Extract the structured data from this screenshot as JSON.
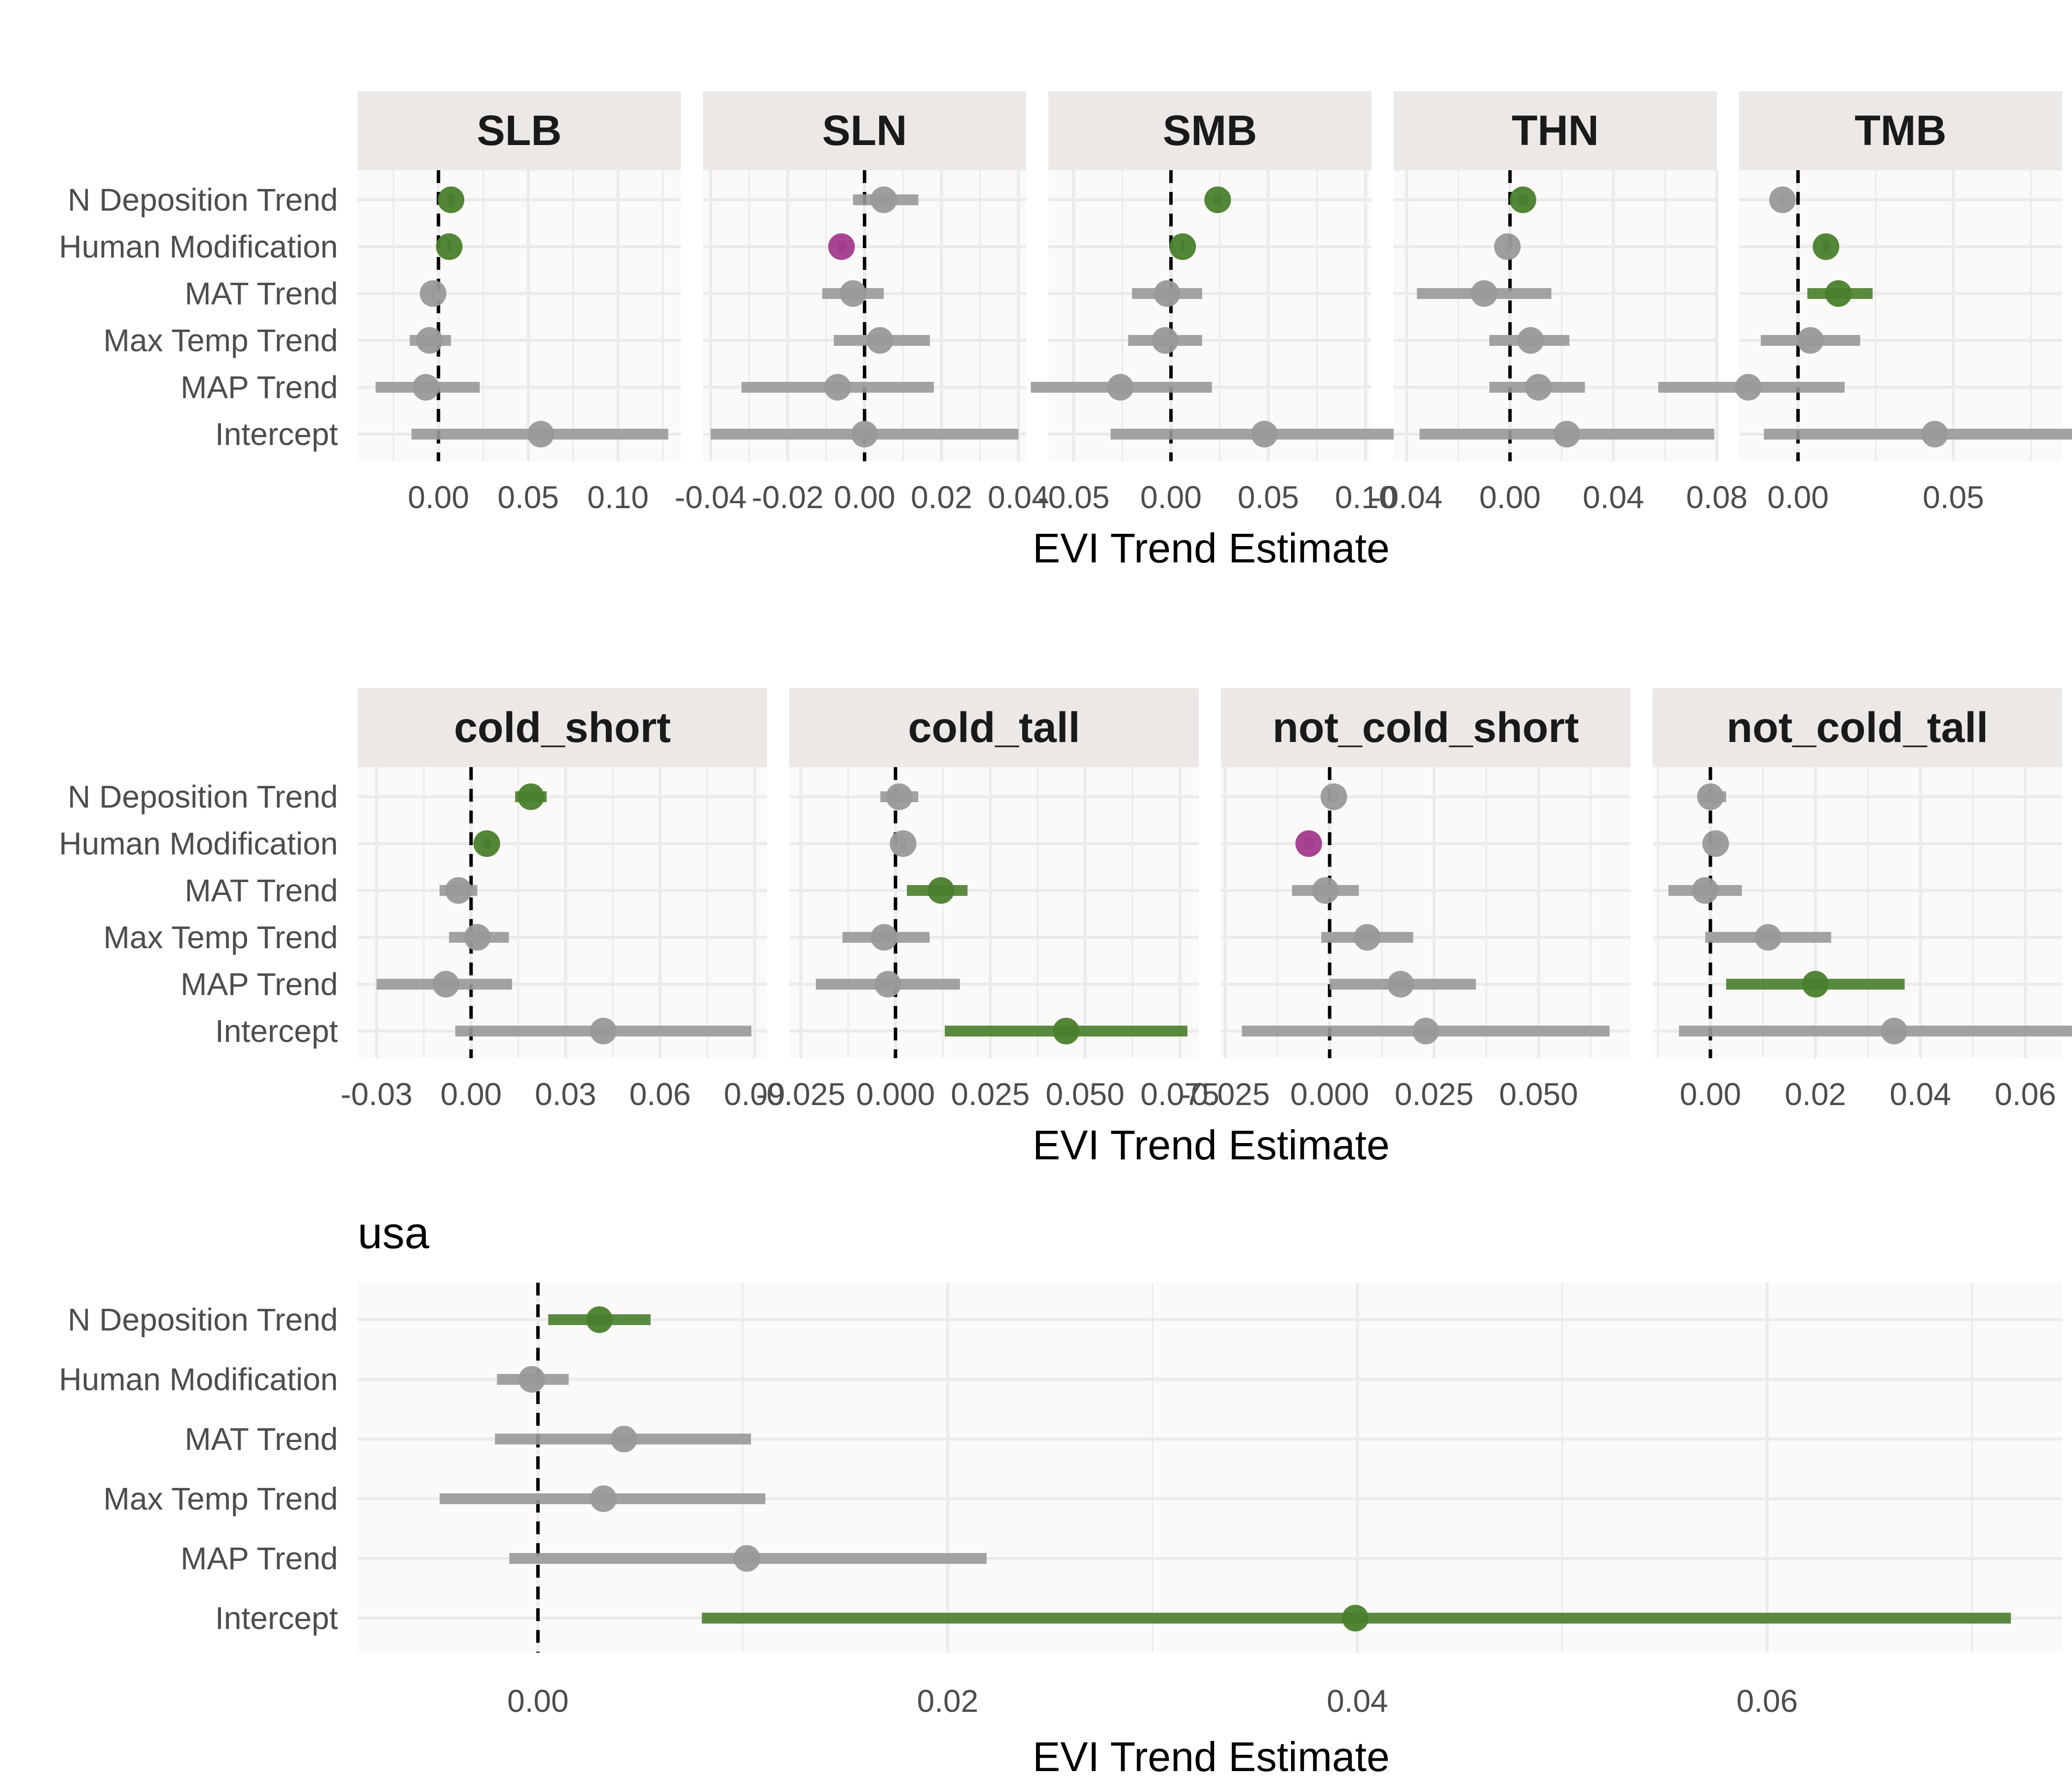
{
  "colors": {
    "significant_positive": "#4a7f2c",
    "significant_negative": "#a33b8c",
    "not_significant": "#999999",
    "strip_background": "#ebe8e6",
    "panel_background": "#fcfaf9",
    "grid": "#ebebeb",
    "zero_line": "#000000"
  },
  "chart_data": [
    {
      "type": "scatter",
      "subtype": "coefficient-dot-plot-with-interval",
      "facets": [
        "SLB",
        "SLN",
        "SMB",
        "THN",
        "TMB"
      ],
      "categories": [
        "N Deposition Trend",
        "Human Modification",
        "MAT Trend",
        "Max Temp Trend",
        "MAP Trend",
        "Intercept"
      ],
      "xlabel": "EVI Trend Estimate",
      "reference_line": 0,
      "grid": true,
      "panels": [
        {
          "name": "SLB",
          "xlim": [
            -0.045,
            0.135
          ],
          "xticks": [
            0,
            0.05,
            0.1
          ],
          "xtick_labels": [
            "0.00",
            "0.05",
            "0.10"
          ],
          "estimates": [
            {
              "term": "N Deposition Trend",
              "estimate": 0.007,
              "low": 0.005,
              "high": 0.009,
              "status": "positive"
            },
            {
              "term": "Human Modification",
              "estimate": 0.006,
              "low": 0.005,
              "high": 0.007,
              "status": "positive"
            },
            {
              "term": "MAT Trend",
              "estimate": -0.003,
              "low": -0.004,
              "high": -0.002,
              "status": "ns"
            },
            {
              "term": "Max Temp Trend",
              "estimate": -0.005,
              "low": -0.016,
              "high": 0.007,
              "status": "ns"
            },
            {
              "term": "MAP Trend",
              "estimate": -0.007,
              "low": -0.035,
              "high": 0.023,
              "status": "ns"
            },
            {
              "term": "Intercept",
              "estimate": 0.057,
              "low": -0.015,
              "high": 0.128,
              "status": "ns"
            }
          ]
        },
        {
          "name": "SLN",
          "xlim": [
            -0.042,
            0.042
          ],
          "xticks": [
            -0.04,
            -0.02,
            0,
            0.02,
            0.04
          ],
          "xtick_labels": [
            "-0.04",
            "-0.02",
            "0.00",
            "0.02",
            "0.04"
          ],
          "estimates": [
            {
              "term": "N Deposition Trend",
              "estimate": 0.005,
              "low": -0.003,
              "high": 0.014,
              "status": "ns"
            },
            {
              "term": "Human Modification",
              "estimate": -0.006,
              "low": -0.007,
              "high": -0.005,
              "status": "negative"
            },
            {
              "term": "MAT Trend",
              "estimate": -0.003,
              "low": -0.011,
              "high": 0.005,
              "status": "ns"
            },
            {
              "term": "Max Temp Trend",
              "estimate": 0.004,
              "low": -0.008,
              "high": 0.017,
              "status": "ns"
            },
            {
              "term": "MAP Trend",
              "estimate": -0.007,
              "low": -0.032,
              "high": 0.018,
              "status": "ns"
            },
            {
              "term": "Intercept",
              "estimate": 0.0,
              "low": -0.04,
              "high": 0.04,
              "status": "ns"
            }
          ]
        },
        {
          "name": "SMB",
          "xlim": [
            -0.063,
            0.103
          ],
          "xticks": [
            -0.05,
            0,
            0.05,
            0.1
          ],
          "xtick_labels": [
            "-0.05",
            "0.00",
            "0.05",
            "0.10"
          ],
          "estimates": [
            {
              "term": "N Deposition Trend",
              "estimate": 0.024,
              "low": 0.022,
              "high": 0.026,
              "status": "positive"
            },
            {
              "term": "Human Modification",
              "estimate": 0.006,
              "low": 0.005,
              "high": 0.007,
              "status": "positive"
            },
            {
              "term": "MAT Trend",
              "estimate": -0.002,
              "low": -0.02,
              "high": 0.016,
              "status": "ns"
            },
            {
              "term": "Max Temp Trend",
              "estimate": -0.003,
              "low": -0.022,
              "high": 0.016,
              "status": "ns"
            },
            {
              "term": "MAP Trend",
              "estimate": -0.026,
              "low": -0.072,
              "high": 0.021,
              "status": "ns"
            },
            {
              "term": "Intercept",
              "estimate": 0.048,
              "low": -0.031,
              "high": 0.127,
              "status": "ns"
            }
          ]
        },
        {
          "name": "THN",
          "xlim": [
            -0.045,
            0.08
          ],
          "xticks": [
            -0.04,
            0,
            0.04,
            0.08
          ],
          "xtick_labels": [
            "-0.04",
            "0.00",
            "0.04",
            "0.08"
          ],
          "estimates": [
            {
              "term": "N Deposition Trend",
              "estimate": 0.005,
              "low": 0.003,
              "high": 0.007,
              "status": "positive"
            },
            {
              "term": "Human Modification",
              "estimate": -0.001,
              "low": -0.002,
              "high": 0.0,
              "status": "ns"
            },
            {
              "term": "MAT Trend",
              "estimate": -0.01,
              "low": -0.036,
              "high": 0.016,
              "status": "ns"
            },
            {
              "term": "Max Temp Trend",
              "estimate": 0.008,
              "low": -0.008,
              "high": 0.023,
              "status": "ns"
            },
            {
              "term": "MAP Trend",
              "estimate": 0.011,
              "low": -0.008,
              "high": 0.029,
              "status": "ns"
            },
            {
              "term": "Intercept",
              "estimate": 0.022,
              "low": -0.035,
              "high": 0.079,
              "status": "ns"
            }
          ]
        },
        {
          "name": "TMB",
          "xlim": [
            -0.019,
            0.085
          ],
          "xticks": [
            0,
            0.05
          ],
          "xtick_labels": [
            "0.00",
            "0.05"
          ],
          "estimates": [
            {
              "term": "N Deposition Trend",
              "estimate": -0.005,
              "low": -0.006,
              "high": -0.004,
              "status": "ns"
            },
            {
              "term": "Human Modification",
              "estimate": 0.009,
              "low": 0.008,
              "high": 0.01,
              "status": "positive"
            },
            {
              "term": "MAT Trend",
              "estimate": 0.013,
              "low": 0.003,
              "high": 0.024,
              "status": "positive"
            },
            {
              "term": "Max Temp Trend",
              "estimate": 0.004,
              "low": -0.012,
              "high": 0.02,
              "status": "ns"
            },
            {
              "term": "MAP Trend",
              "estimate": -0.016,
              "low": -0.045,
              "high": 0.015,
              "status": "ns"
            },
            {
              "term": "Intercept",
              "estimate": 0.044,
              "low": -0.011,
              "high": 0.099,
              "status": "ns"
            }
          ]
        }
      ]
    },
    {
      "type": "scatter",
      "subtype": "coefficient-dot-plot-with-interval",
      "facets": [
        "cold_short",
        "cold_tall",
        "not_cold_short",
        "not_cold_tall"
      ],
      "categories": [
        "N Deposition Trend",
        "Human Modification",
        "MAT Trend",
        "Max Temp Trend",
        "MAP Trend",
        "Intercept"
      ],
      "xlabel": "EVI Trend Estimate",
      "reference_line": 0,
      "grid": true,
      "panels": [
        {
          "name": "cold_short",
          "xlim": [
            -0.036,
            0.094
          ],
          "xticks": [
            -0.03,
            0,
            0.03,
            0.06,
            0.09
          ],
          "xtick_labels": [
            "-0.03",
            "0.00",
            "0.03",
            "0.06",
            "0.09"
          ],
          "estimates": [
            {
              "term": "N Deposition Trend",
              "estimate": 0.019,
              "low": 0.014,
              "high": 0.024,
              "status": "positive"
            },
            {
              "term": "Human Modification",
              "estimate": 0.005,
              "low": 0.004,
              "high": 0.006,
              "status": "positive"
            },
            {
              "term": "MAT Trend",
              "estimate": -0.004,
              "low": -0.01,
              "high": 0.002,
              "status": "ns"
            },
            {
              "term": "Max Temp Trend",
              "estimate": 0.002,
              "low": -0.007,
              "high": 0.012,
              "status": "ns"
            },
            {
              "term": "MAP Trend",
              "estimate": -0.008,
              "low": -0.03,
              "high": 0.013,
              "status": "ns"
            },
            {
              "term": "Intercept",
              "estimate": 0.042,
              "low": -0.005,
              "high": 0.089,
              "status": "ns"
            }
          ]
        },
        {
          "name": "cold_tall",
          "xlim": [
            -0.028,
            0.08
          ],
          "xticks": [
            -0.025,
            0,
            0.025,
            0.05,
            0.075
          ],
          "xtick_labels": [
            "-0.025",
            "0.000",
            "0.025",
            "0.050",
            "0.075"
          ],
          "estimates": [
            {
              "term": "N Deposition Trend",
              "estimate": 0.001,
              "low": -0.004,
              "high": 0.006,
              "status": "ns"
            },
            {
              "term": "Human Modification",
              "estimate": 0.002,
              "low": 0.001,
              "high": 0.003,
              "status": "ns"
            },
            {
              "term": "MAT Trend",
              "estimate": 0.012,
              "low": 0.003,
              "high": 0.019,
              "status": "positive"
            },
            {
              "term": "Max Temp Trend",
              "estimate": -0.003,
              "low": -0.014,
              "high": 0.009,
              "status": "ns"
            },
            {
              "term": "MAP Trend",
              "estimate": -0.002,
              "low": -0.021,
              "high": 0.017,
              "status": "ns"
            },
            {
              "term": "Intercept",
              "estimate": 0.045,
              "low": 0.013,
              "high": 0.077,
              "status": "positive"
            }
          ]
        },
        {
          "name": "not_cold_short",
          "xlim": [
            -0.026,
            0.072
          ],
          "xticks": [
            -0.025,
            0,
            0.025,
            0.05
          ],
          "xtick_labels": [
            "-0.025",
            "0.000",
            "0.025",
            "0.050"
          ],
          "estimates": [
            {
              "term": "N Deposition Trend",
              "estimate": 0.001,
              "low": 0.0,
              "high": 0.002,
              "status": "ns"
            },
            {
              "term": "Human Modification",
              "estimate": -0.005,
              "low": -0.006,
              "high": -0.004,
              "status": "negative"
            },
            {
              "term": "MAT Trend",
              "estimate": -0.001,
              "low": -0.009,
              "high": 0.007,
              "status": "ns"
            },
            {
              "term": "Max Temp Trend",
              "estimate": 0.009,
              "low": -0.002,
              "high": 0.02,
              "status": "ns"
            },
            {
              "term": "MAP Trend",
              "estimate": 0.017,
              "low": 0.0,
              "high": 0.035,
              "status": "ns"
            },
            {
              "term": "Intercept",
              "estimate": 0.023,
              "low": -0.021,
              "high": 0.067,
              "status": "ns"
            }
          ]
        },
        {
          "name": "not_cold_tall",
          "xlim": [
            -0.011,
            0.067
          ],
          "xticks": [
            0,
            0.02,
            0.04,
            0.06
          ],
          "xtick_labels": [
            "0.00",
            "0.02",
            "0.04",
            "0.06"
          ],
          "estimates": [
            {
              "term": "N Deposition Trend",
              "estimate": 0.0,
              "low": -0.002,
              "high": 0.003,
              "status": "ns"
            },
            {
              "term": "Human Modification",
              "estimate": 0.001,
              "low": 0.0,
              "high": 0.002,
              "status": "ns"
            },
            {
              "term": "MAT Trend",
              "estimate": -0.001,
              "low": -0.008,
              "high": 0.006,
              "status": "ns"
            },
            {
              "term": "Max Temp Trend",
              "estimate": 0.011,
              "low": -0.001,
              "high": 0.023,
              "status": "ns"
            },
            {
              "term": "MAP Trend",
              "estimate": 0.02,
              "low": 0.003,
              "high": 0.037,
              "status": "positive"
            },
            {
              "term": "Intercept",
              "estimate": 0.035,
              "low": -0.006,
              "high": 0.075,
              "status": "ns"
            }
          ]
        }
      ]
    },
    {
      "type": "scatter",
      "subtype": "coefficient-dot-plot-with-interval",
      "title": "usa",
      "categories": [
        "N Deposition Trend",
        "Human Modification",
        "MAT Trend",
        "Max Temp Trend",
        "MAP Trend",
        "Intercept"
      ],
      "xlabel": "EVI Trend Estimate",
      "reference_line": 0,
      "grid": true,
      "panels": [
        {
          "name": "usa",
          "xlim": [
            -0.0088,
            0.0744
          ],
          "xticks": [
            0,
            0.02,
            0.04,
            0.06
          ],
          "xtick_labels": [
            "0.00",
            "0.02",
            "0.04",
            "0.06"
          ],
          "estimates": [
            {
              "term": "N Deposition Trend",
              "estimate": 0.003,
              "low": 0.0005,
              "high": 0.0055,
              "status": "positive"
            },
            {
              "term": "Human Modification",
              "estimate": -0.0003,
              "low": -0.002,
              "high": 0.0015,
              "status": "ns"
            },
            {
              "term": "MAT Trend",
              "estimate": 0.0042,
              "low": -0.0021,
              "high": 0.0104,
              "status": "ns"
            },
            {
              "term": "Max Temp Trend",
              "estimate": 0.0032,
              "low": -0.0048,
              "high": 0.0111,
              "status": "ns"
            },
            {
              "term": "MAP Trend",
              "estimate": 0.0102,
              "low": -0.0014,
              "high": 0.0219,
              "status": "ns"
            },
            {
              "term": "Intercept",
              "estimate": 0.0399,
              "low": 0.008,
              "high": 0.0719,
              "status": "positive"
            }
          ]
        }
      ]
    }
  ]
}
